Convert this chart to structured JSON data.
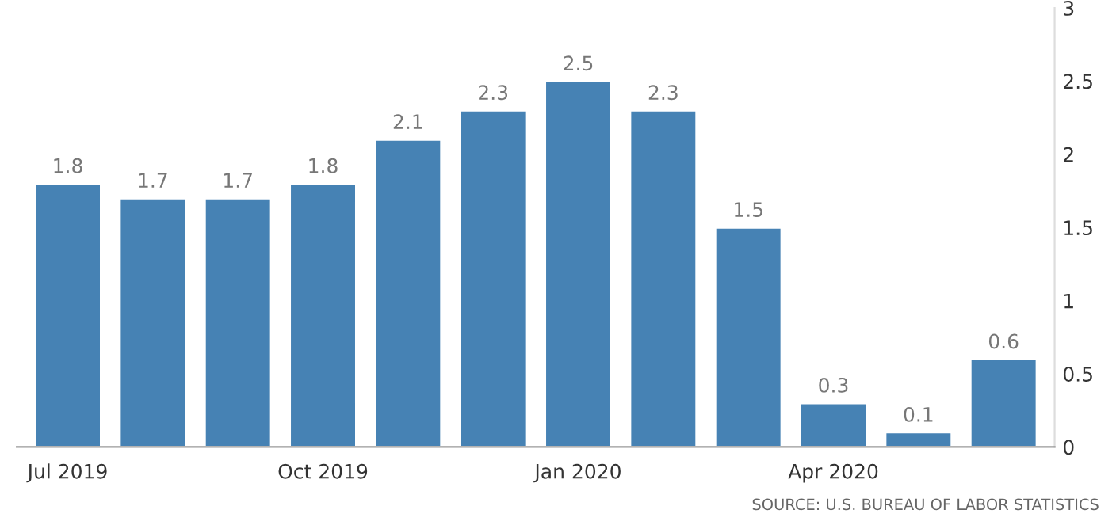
{
  "chart_data": {
    "type": "bar",
    "categories": [
      "Jul 2019",
      null,
      null,
      "Oct 2019",
      null,
      null,
      "Jan 2020",
      null,
      null,
      "Apr 2020",
      null,
      null
    ],
    "values": [
      1.8,
      1.7,
      1.7,
      1.8,
      2.1,
      2.3,
      2.5,
      2.3,
      1.5,
      0.3,
      0.1,
      0.6
    ],
    "color": "#4682b4",
    "ylim": [
      0,
      3
    ],
    "yticks": [
      0,
      0.5,
      1,
      1.5,
      2,
      2.5,
      3
    ],
    "data_labels": true,
    "grid": false,
    "legend": false,
    "annotations": [
      "SOURCE: U.S. BUREAU OF LABOR STATISTICS"
    ]
  }
}
